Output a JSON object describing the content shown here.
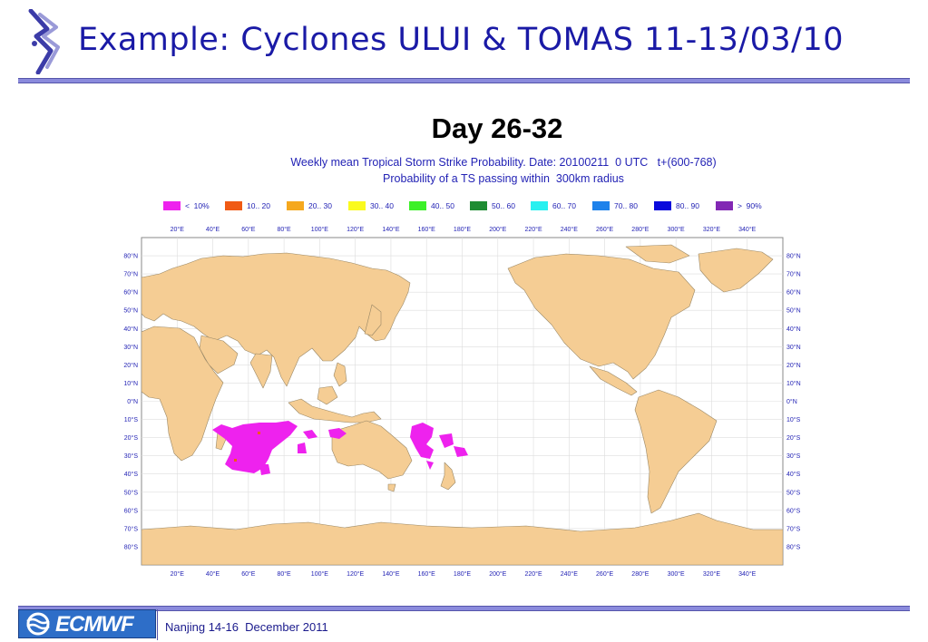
{
  "slide": {
    "title": "Example: Cyclones ULUI & TOMAS 11-13/03/10",
    "footer": "Nanjing 14-16  December 2011",
    "logo_text": "ECMWF",
    "colors": {
      "title": "#1a1aa6",
      "rule": "#8a8adc",
      "land": "#f5cd94",
      "coast": "#9a8866",
      "probability": "#ee22ee"
    }
  },
  "map": {
    "title": "Day 26-32",
    "subtitle_line1": "Weekly mean Tropical Storm Strike Probability. Date: 20100211  0 UTC   t+(600-768)",
    "subtitle_line2": "Probability of a TS passing within  300km radius",
    "legend": [
      {
        "label": "<  10%",
        "color": "#ee22ee"
      },
      {
        "label": "10.. 20",
        "color": "#f05a14"
      },
      {
        "label": "20.. 30",
        "color": "#f5a81e"
      },
      {
        "label": "30.. 40",
        "color": "#fafa1e"
      },
      {
        "label": "40.. 50",
        "color": "#3cf028"
      },
      {
        "label": "50.. 60",
        "color": "#1e8c32"
      },
      {
        "label": "60.. 70",
        "color": "#28f0f0"
      },
      {
        "label": "70.. 80",
        "color": "#1e82eb"
      },
      {
        "label": "80.. 90",
        "color": "#0a0adc"
      },
      {
        "label": ">  90%",
        "color": "#8228b4"
      }
    ],
    "lon_labels": [
      "20°E",
      "40°E",
      "60°E",
      "80°E",
      "100°E",
      "120°E",
      "140°E",
      "160°E",
      "180°E",
      "200°E",
      "220°E",
      "240°E",
      "260°E",
      "280°E",
      "300°E",
      "320°E",
      "340°E"
    ],
    "lat_labels": [
      "80°N",
      "70°N",
      "60°N",
      "50°N",
      "40°N",
      "30°N",
      "20°N",
      "10°N",
      "0°N",
      "10°S",
      "20°S",
      "30°S",
      "40°S",
      "50°S",
      "60°S",
      "70°S",
      "80°S"
    ],
    "lon_range": [
      0,
      360
    ],
    "lat_range": [
      -90,
      90
    ],
    "grid": true
  }
}
